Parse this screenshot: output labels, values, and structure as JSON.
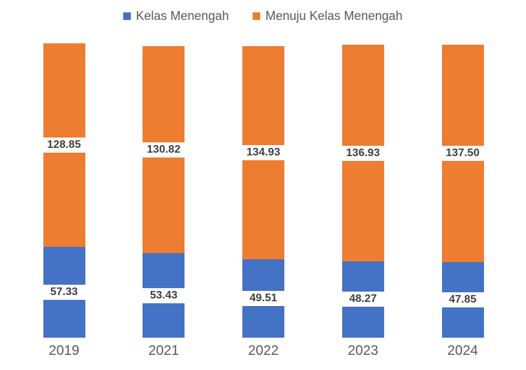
{
  "chart_data": {
    "type": "bar",
    "stacked": true,
    "orientation": "vertical",
    "title": "",
    "categories": [
      "2019",
      "2021",
      "2022",
      "2023",
      "2024"
    ],
    "series": [
      {
        "name": "Kelas Menengah",
        "color": "#4472C4",
        "values": [
          57.33,
          53.43,
          49.51,
          48.27,
          47.85
        ],
        "labels": [
          "57.33",
          "53.43",
          "49.51",
          "48.27",
          "47.85"
        ]
      },
      {
        "name": "Menuju Kelas Menengah",
        "color": "#ED7D31",
        "values": [
          128.85,
          130.82,
          134.93,
          136.93,
          137.5
        ],
        "labels": [
          "128.85",
          "130.82",
          "134.93",
          "136.93",
          "137.50"
        ]
      }
    ],
    "legend_position": "top",
    "grid": false,
    "data_labels": true,
    "data_label_background": "#FFFFFF",
    "axes_hidden": true,
    "ylim": [
      0,
      186.18
    ]
  },
  "styles": {
    "background": "#FFFFFF",
    "data_label_color": "#3F3F3F",
    "axis_text_color": "#595959",
    "legend_text_color": "#595959"
  }
}
